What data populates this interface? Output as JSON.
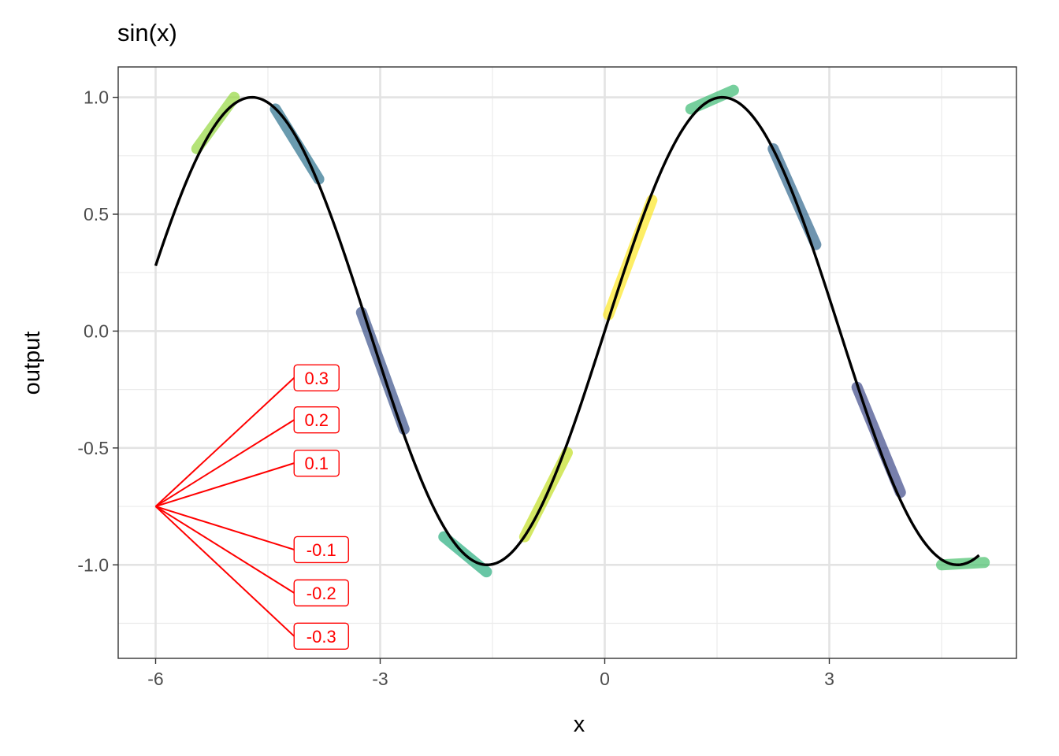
{
  "chart_data": {
    "type": "line",
    "title": "sin(x)",
    "xlabel": "x",
    "ylabel": "output",
    "xlim": [
      -6.5,
      5.5
    ],
    "ylim": [
      -1.4,
      1.13
    ],
    "x_ticks": [
      -6,
      -3,
      0,
      3
    ],
    "x_tick_labels": [
      "-6",
      "-3",
      "0",
      "3"
    ],
    "y_ticks": [
      1.0,
      0.5,
      0.0,
      -0.5,
      -1.0
    ],
    "y_tick_labels": [
      "1.0",
      "0.5",
      "0.0",
      "-0.5",
      "-1.0"
    ],
    "grid": true,
    "curve": {
      "function": "sin",
      "x_start": -6,
      "x_end": 5,
      "color": "#000000"
    },
    "tangent_segments": [
      {
        "x1": -5.45,
        "y1": 0.78,
        "x2": -4.95,
        "y2": 1.0,
        "color": "#95d840"
      },
      {
        "x1": -4.4,
        "y1": 0.95,
        "x2": -3.82,
        "y2": 0.65,
        "color": "#2c728e"
      },
      {
        "x1": -3.25,
        "y1": 0.08,
        "x2": -2.68,
        "y2": -0.42,
        "color": "#3b528b"
      },
      {
        "x1": -2.15,
        "y1": -0.88,
        "x2": -1.58,
        "y2": -1.03,
        "color": "#29af7f"
      },
      {
        "x1": -1.07,
        "y1": -0.88,
        "x2": -0.5,
        "y2": -0.52,
        "color": "#c2df23"
      },
      {
        "x1": 0.05,
        "y1": 0.07,
        "x2": 0.63,
        "y2": 0.56,
        "color": "#fde725"
      },
      {
        "x1": 1.15,
        "y1": 0.95,
        "x2": 1.72,
        "y2": 1.03,
        "color": "#3dbc74"
      },
      {
        "x1": 2.25,
        "y1": 0.78,
        "x2": 2.82,
        "y2": 0.37,
        "color": "#31688e"
      },
      {
        "x1": 3.37,
        "y1": -0.24,
        "x2": 3.95,
        "y2": -0.69,
        "color": "#3e4989"
      },
      {
        "x1": 4.5,
        "y1": -1.0,
        "x2": 5.07,
        "y2": -0.99,
        "color": "#4ac16d"
      }
    ],
    "annotations": {
      "origin": {
        "x": -6,
        "y": -0.75
      },
      "color": "#ff0000",
      "labels": [
        {
          "text": "0.3",
          "x": -4.15,
          "y": -0.2
        },
        {
          "text": "0.2",
          "x": -4.15,
          "y": -0.38
        },
        {
          "text": "0.1",
          "x": -4.15,
          "y": -0.565
        },
        {
          "text": "-0.1",
          "x": -4.15,
          "y": -0.935
        },
        {
          "text": "-0.2",
          "x": -4.15,
          "y": -1.12
        },
        {
          "text": "-0.3",
          "x": -4.15,
          "y": -1.305
        }
      ]
    }
  }
}
